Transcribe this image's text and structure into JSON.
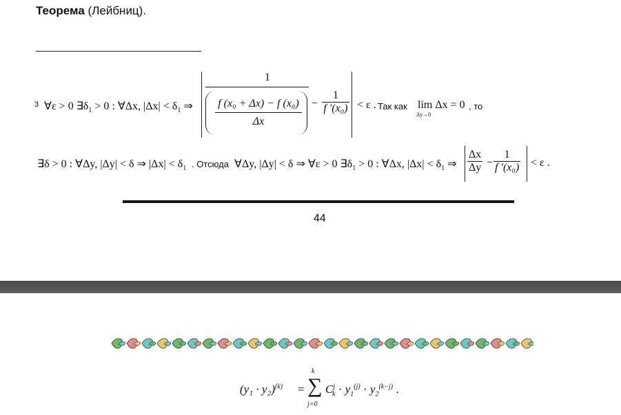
{
  "page_top": {
    "theorem_label": "Теорема",
    "theorem_name": "(Лейбниц)."
  },
  "footnote": {
    "marker": "3",
    "line1": {
      "quantifiers": "∀ε > 0 ∃δ",
      "sub1": "1",
      "cond": "> 0 : ∀Δx, |Δx| < δ",
      "sub2": "1",
      "implies": "⇒",
      "frac_num": "1",
      "frac_inner_num": "f (x₀ + Δx) − f (x₀)",
      "frac_inner_den": "Δx",
      "minus": "−",
      "frac2_num": "1",
      "frac2_den": "f ′(x₀)",
      "lt_eps": "< ε .",
      "text_since": "Так как",
      "lim_word": "lim",
      "lim_sub": "Δy→0",
      "lim_expr": "Δx = 0",
      "text_then": ", то"
    },
    "line2": {
      "part1": "∃δ > 0 : ∀Δy, |Δy| < δ ⇒ |Δx| < δ",
      "sub1": "1",
      "text_hence": ". Отсюда",
      "part2": "∀Δy, |Δy| < δ ⇒ ∀ε > 0 ∃δ",
      "sub2": "1",
      "part3": "> 0 : ∀Δx, |Δx| < δ",
      "sub3": "1",
      "implies": "⇒",
      "frac1_num": "Δx",
      "frac1_den": "Δy",
      "minus": "−",
      "frac2_num": "1",
      "frac2_den": "f ′(x₀)",
      "end": "< ε ."
    }
  },
  "page_number": "44",
  "next_page": {
    "ornament_icon": "leaf-border-ornament",
    "formula": {
      "lhs": "(y₁ · y₂)",
      "lhs_sup": "(k)",
      "eq": "=",
      "sum_top": "k",
      "sum_bottom": "j=0",
      "sum_sign": "∑",
      "rhs": "C",
      "rhs_sup": "j",
      "rhs_sub": "k",
      "dot1": "·",
      "y1": "y",
      "y1_sub": "1",
      "y1_sup": "(j)",
      "dot2": "·",
      "y2": "y",
      "y2_sub": "2",
      "y2_sup": "(k−j)",
      "end": "."
    }
  },
  "colors": {
    "text": "#111111",
    "page_gap": "#555555",
    "leaf_green": "#6fb86a",
    "leaf_pink": "#e58a8a",
    "leaf_teal": "#6ec7c0",
    "leaf_yellow": "#e8c86a"
  }
}
